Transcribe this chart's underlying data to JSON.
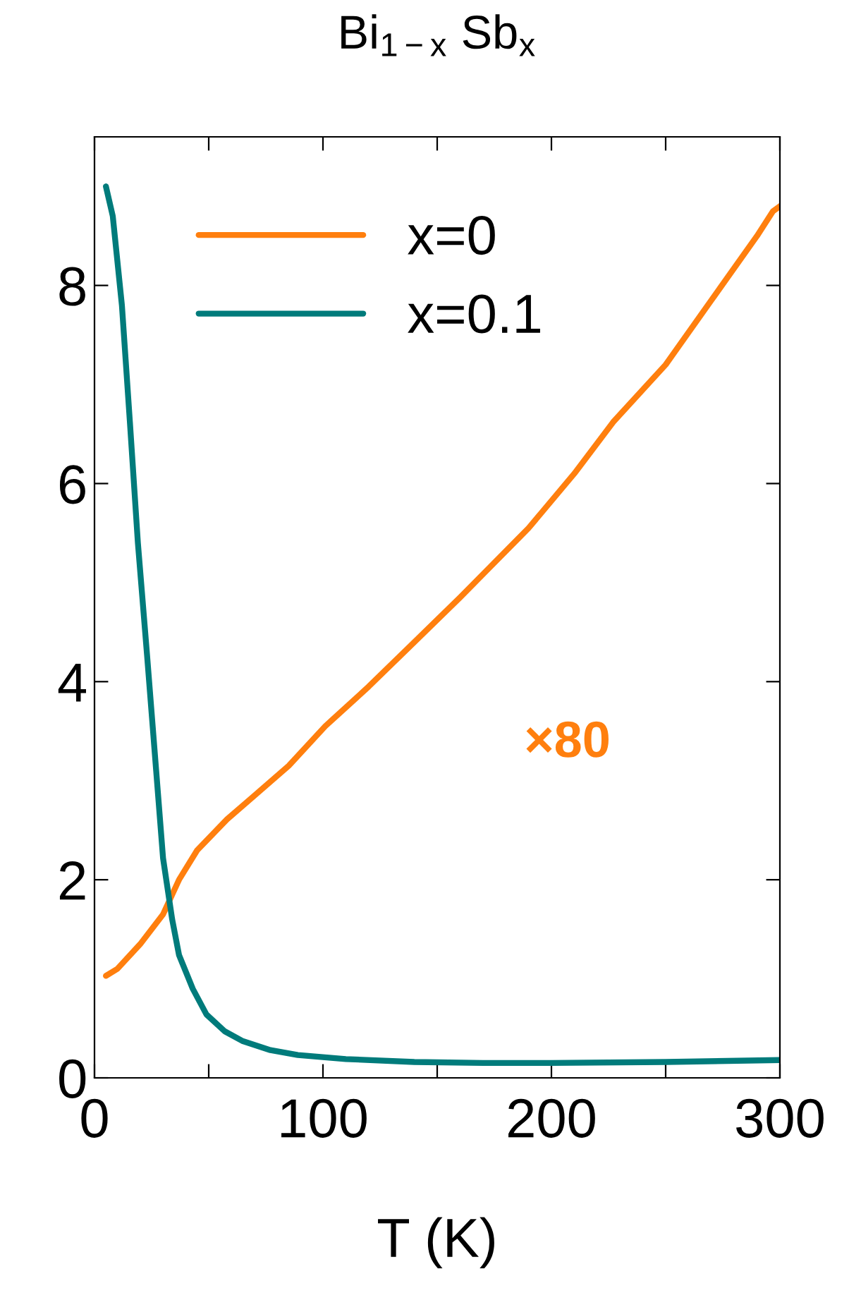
{
  "chart_data": {
    "type": "line",
    "title": "Bi$_{1−x}$ Sb$_{x}$",
    "xlabel": "T (K)",
    "xlim": [
      0,
      300
    ],
    "ylim": [
      0,
      9.5
    ],
    "xticks": [
      0,
      {
        "value": 50,
        "label": null
      },
      100,
      {
        "value": 150,
        "label": null
      },
      200,
      {
        "value": 250,
        "label": null
      },
      300
    ],
    "yticks": [
      0,
      2,
      4,
      6,
      8
    ],
    "legend": "top left",
    "grid": false,
    "annotations": [
      "×80"
    ],
    "series": [
      {
        "name": "x=0",
        "color": "#ff7f0e",
        "x": [
          5,
          10,
          20,
          30,
          37,
          45,
          58,
          70,
          85,
          101,
          120,
          140,
          160,
          172,
          190,
          210,
          227,
          250,
          270,
          290,
          297,
          300
        ],
        "values": [
          1.03,
          1.1,
          1.35,
          1.65,
          2.0,
          2.3,
          2.61,
          2.85,
          3.15,
          3.55,
          3.95,
          4.4,
          4.85,
          5.13,
          5.55,
          6.1,
          6.62,
          7.2,
          7.85,
          8.5,
          8.75,
          8.8
        ]
      },
      {
        "name": "x=0.1",
        "color": "#007b7b",
        "x": [
          5,
          8,
          12,
          15.5,
          19,
          23,
          27,
          30,
          34,
          37,
          43,
          49,
          57,
          65,
          77,
          89,
          110,
          140,
          170,
          200,
          250,
          300
        ],
        "values": [
          9.0,
          8.7,
          7.8,
          6.62,
          5.4,
          4.27,
          3.1,
          2.22,
          1.6,
          1.24,
          0.9,
          0.64,
          0.47,
          0.37,
          0.28,
          0.23,
          0.19,
          0.16,
          0.15,
          0.15,
          0.16,
          0.18
        ]
      }
    ]
  }
}
